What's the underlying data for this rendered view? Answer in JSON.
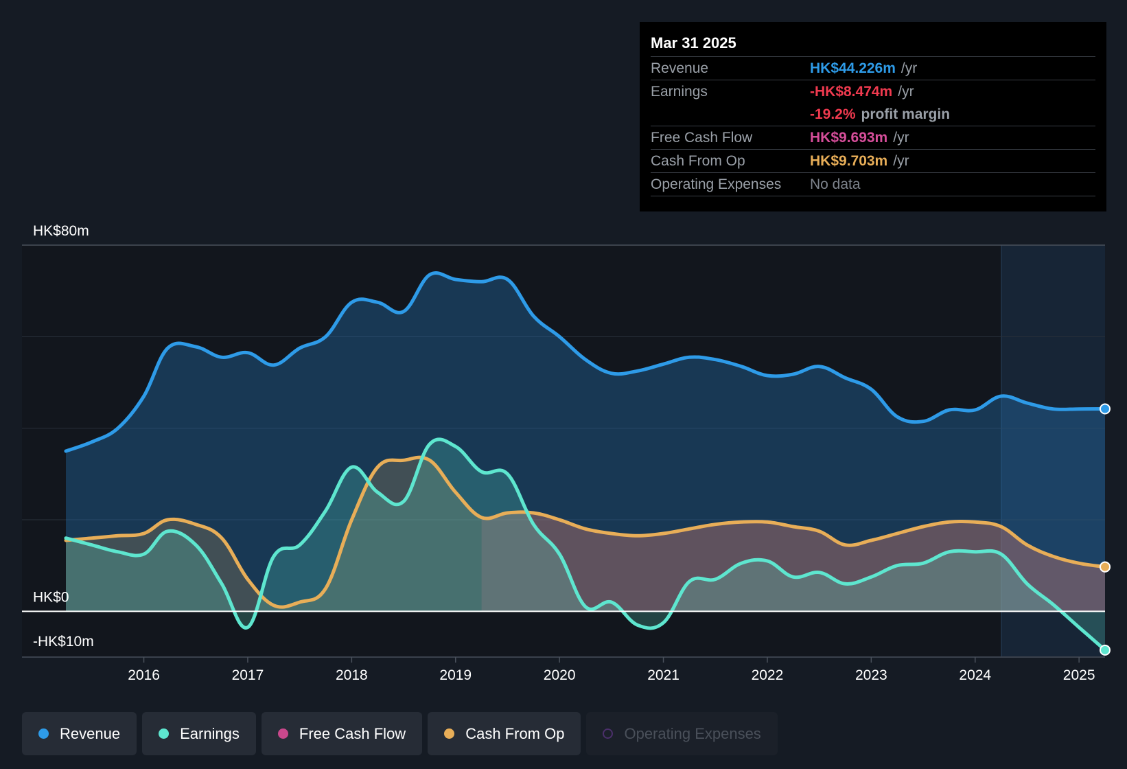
{
  "tooltip": {
    "date": "Mar 31 2025",
    "rows": [
      {
        "label": "Revenue",
        "value": "HK$44.226m",
        "unit": "/yr",
        "color": "#2e9be8"
      },
      {
        "label": "Earnings",
        "value": "-HK$8.474m",
        "unit": "/yr",
        "color": "#f03a4f"
      },
      {
        "label": "",
        "value": "-19.2%",
        "unit": "profit margin",
        "color": "#f03a4f"
      },
      {
        "label": "Free Cash Flow",
        "value": "HK$9.693m",
        "unit": "/yr",
        "color": "#d64e9a"
      },
      {
        "label": "Cash From Op",
        "value": "HK$9.703m",
        "unit": "/yr",
        "color": "#e8ae58"
      },
      {
        "label": "Operating Expenses",
        "value": "No data",
        "unit": "",
        "color": "#7d838c"
      }
    ]
  },
  "legend": [
    {
      "label": "Revenue",
      "color": "#2e9be8",
      "active": true
    },
    {
      "label": "Earnings",
      "color": "#5ee6cf",
      "active": true
    },
    {
      "label": "Free Cash Flow",
      "color": "#c9488c",
      "active": true
    },
    {
      "label": "Cash From Op",
      "color": "#e8ae58",
      "active": true
    },
    {
      "label": "Operating Expenses",
      "color": "#4b2f6b",
      "active": false
    }
  ],
  "chart_data": {
    "type": "area",
    "ylim": [
      -10,
      80
    ],
    "y_tick_labels": [
      {
        "label": "HK$80m",
        "value": 80
      },
      {
        "label": "HK$0",
        "value": 0
      },
      {
        "label": "-HK$10m",
        "value": -10
      }
    ],
    "xlim": [
      2015.25,
      2025.25
    ],
    "x_ticks": [
      2016,
      2017,
      2018,
      2019,
      2020,
      2021,
      2022,
      2023,
      2024,
      2025
    ],
    "grid": true,
    "forecast_start": 2024.25,
    "series": [
      {
        "name": "Revenue",
        "color": "#2e9be8",
        "points": [
          [
            2015.25,
            35.0
          ],
          [
            2015.5,
            37.0
          ],
          [
            2015.75,
            40.0
          ],
          [
            2016.0,
            47.0
          ],
          [
            2016.23,
            57.5
          ],
          [
            2016.5,
            57.8
          ],
          [
            2016.75,
            55.5
          ],
          [
            2017.0,
            56.5
          ],
          [
            2017.25,
            53.8
          ],
          [
            2017.5,
            57.5
          ],
          [
            2017.75,
            60.0
          ],
          [
            2018.0,
            67.5
          ],
          [
            2018.25,
            67.5
          ],
          [
            2018.5,
            65.5
          ],
          [
            2018.75,
            73.5
          ],
          [
            2019.0,
            72.5
          ],
          [
            2019.25,
            72.0
          ],
          [
            2019.5,
            72.5
          ],
          [
            2019.75,
            64.5
          ],
          [
            2020.0,
            60.0
          ],
          [
            2020.25,
            55.0
          ],
          [
            2020.5,
            52.0
          ],
          [
            2020.75,
            52.5
          ],
          [
            2021.0,
            54.0
          ],
          [
            2021.25,
            55.5
          ],
          [
            2021.5,
            55.0
          ],
          [
            2021.75,
            53.5
          ],
          [
            2022.0,
            51.5
          ],
          [
            2022.25,
            51.8
          ],
          [
            2022.5,
            53.5
          ],
          [
            2022.75,
            51.0
          ],
          [
            2023.0,
            48.5
          ],
          [
            2023.25,
            42.5
          ],
          [
            2023.5,
            41.5
          ],
          [
            2023.75,
            44.0
          ],
          [
            2024.0,
            44.0
          ],
          [
            2024.25,
            47.0
          ],
          [
            2024.5,
            45.5
          ],
          [
            2024.75,
            44.2
          ],
          [
            2025.0,
            44.2
          ],
          [
            2025.25,
            44.226
          ]
        ]
      },
      {
        "name": "Earnings",
        "color": "#5ee6cf",
        "points": [
          [
            2015.25,
            16.0
          ],
          [
            2015.5,
            14.5
          ],
          [
            2015.75,
            13.0
          ],
          [
            2016.0,
            12.5
          ],
          [
            2016.23,
            17.5
          ],
          [
            2016.5,
            14.5
          ],
          [
            2016.75,
            6.0
          ],
          [
            2017.0,
            -3.5
          ],
          [
            2017.25,
            12.0
          ],
          [
            2017.5,
            14.5
          ],
          [
            2017.75,
            22.0
          ],
          [
            2018.0,
            31.5
          ],
          [
            2018.25,
            26.0
          ],
          [
            2018.5,
            24.0
          ],
          [
            2018.75,
            36.5
          ],
          [
            2019.0,
            36.0
          ],
          [
            2019.25,
            30.5
          ],
          [
            2019.5,
            30.0
          ],
          [
            2019.75,
            19.0
          ],
          [
            2020.0,
            12.5
          ],
          [
            2020.25,
            1.0
          ],
          [
            2020.5,
            2.0
          ],
          [
            2020.75,
            -3.0
          ],
          [
            2021.0,
            -2.5
          ],
          [
            2021.25,
            6.5
          ],
          [
            2021.5,
            7.0
          ],
          [
            2021.75,
            10.5
          ],
          [
            2022.0,
            11.0
          ],
          [
            2022.25,
            7.5
          ],
          [
            2022.5,
            8.5
          ],
          [
            2022.75,
            6.0
          ],
          [
            2023.0,
            7.5
          ],
          [
            2023.25,
            10.0
          ],
          [
            2023.5,
            10.5
          ],
          [
            2023.75,
            13.0
          ],
          [
            2024.0,
            13.0
          ],
          [
            2024.25,
            12.5
          ],
          [
            2024.5,
            6.0
          ],
          [
            2024.75,
            1.5
          ],
          [
            2025.0,
            -3.5
          ],
          [
            2025.25,
            -8.474
          ]
        ]
      },
      {
        "name": "Free Cash Flow",
        "color": "#c9488c",
        "points": [
          [
            2019.25,
            20.5
          ],
          [
            2019.5,
            21.5
          ],
          [
            2019.75,
            21.5
          ],
          [
            2020.0,
            20.0
          ],
          [
            2020.25,
            18.0
          ],
          [
            2020.5,
            17.0
          ],
          [
            2020.75,
            16.5
          ],
          [
            2021.0,
            17.0
          ],
          [
            2021.25,
            18.0
          ],
          [
            2021.5,
            19.0
          ],
          [
            2021.75,
            19.5
          ],
          [
            2022.0,
            19.5
          ],
          [
            2022.25,
            18.5
          ],
          [
            2022.5,
            17.5
          ],
          [
            2022.75,
            14.5
          ],
          [
            2023.0,
            15.5
          ],
          [
            2023.25,
            17.0
          ],
          [
            2023.5,
            18.5
          ],
          [
            2023.75,
            19.5
          ],
          [
            2024.0,
            19.5
          ],
          [
            2024.25,
            18.5
          ],
          [
            2024.5,
            14.5
          ],
          [
            2024.75,
            12.0
          ],
          [
            2025.0,
            10.5
          ],
          [
            2025.25,
            9.693
          ]
        ]
      },
      {
        "name": "Cash From Op",
        "color": "#e8ae58",
        "points": [
          [
            2015.25,
            15.5
          ],
          [
            2015.5,
            16.0
          ],
          [
            2015.75,
            16.5
          ],
          [
            2016.0,
            17.0
          ],
          [
            2016.23,
            20.0
          ],
          [
            2016.5,
            19.0
          ],
          [
            2016.75,
            16.0
          ],
          [
            2017.0,
            7.0
          ],
          [
            2017.25,
            1.3
          ],
          [
            2017.5,
            2.0
          ],
          [
            2017.75,
            5.0
          ],
          [
            2018.0,
            20.0
          ],
          [
            2018.25,
            31.5
          ],
          [
            2018.5,
            33.0
          ],
          [
            2018.75,
            33.0
          ],
          [
            2019.0,
            26.0
          ],
          [
            2019.25,
            20.5
          ],
          [
            2019.5,
            21.5
          ],
          [
            2019.75,
            21.5
          ],
          [
            2020.0,
            20.0
          ],
          [
            2020.25,
            18.0
          ],
          [
            2020.5,
            17.0
          ],
          [
            2020.75,
            16.5
          ],
          [
            2021.0,
            17.0
          ],
          [
            2021.25,
            18.0
          ],
          [
            2021.5,
            19.0
          ],
          [
            2021.75,
            19.5
          ],
          [
            2022.0,
            19.5
          ],
          [
            2022.25,
            18.5
          ],
          [
            2022.5,
            17.5
          ],
          [
            2022.75,
            14.5
          ],
          [
            2023.0,
            15.5
          ],
          [
            2023.25,
            17.0
          ],
          [
            2023.5,
            18.5
          ],
          [
            2023.75,
            19.5
          ],
          [
            2024.0,
            19.5
          ],
          [
            2024.25,
            18.5
          ],
          [
            2024.5,
            14.5
          ],
          [
            2024.75,
            12.0
          ],
          [
            2025.0,
            10.5
          ],
          [
            2025.25,
            9.703
          ]
        ]
      }
    ]
  }
}
